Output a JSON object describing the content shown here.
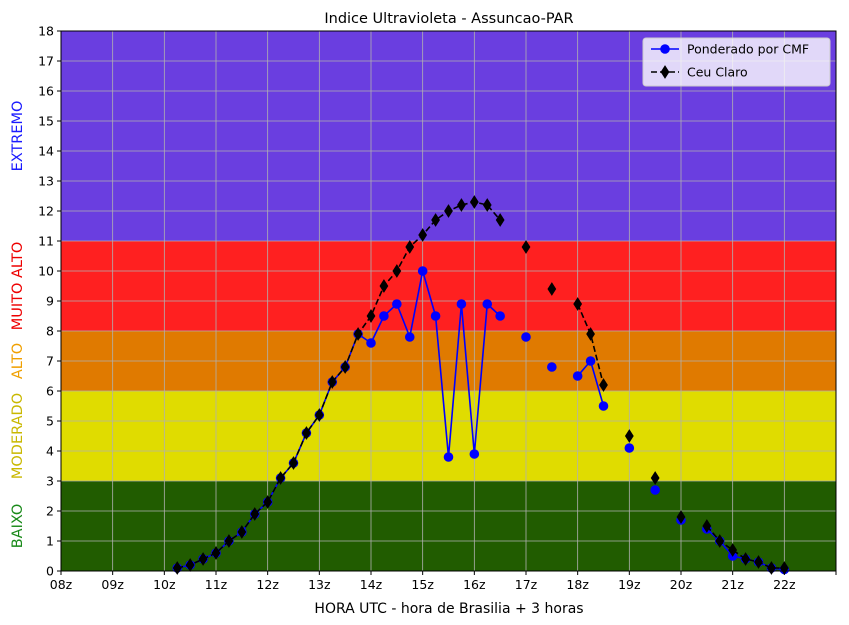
{
  "chart_data": {
    "type": "line",
    "title": "Indice Ultravioleta - Assuncao-PAR",
    "xlabel": "HORA UTC - hora de Brasilia + 3 horas",
    "ylabel": "",
    "xlim": [
      8,
      23
    ],
    "ylim": [
      0,
      18
    ],
    "x_ticks": [
      8,
      9,
      10,
      11,
      12,
      13,
      14,
      15,
      16,
      17,
      18,
      19,
      20,
      21,
      22,
      23
    ],
    "x_tick_labels": [
      "08z",
      "09z",
      "10z",
      "11z",
      "12z",
      "13z",
      "14z",
      "15z",
      "16z",
      "17z",
      "18z",
      "19z",
      "20z",
      "21z",
      "22z",
      ""
    ],
    "y_ticks": [
      0,
      1,
      2,
      3,
      4,
      5,
      6,
      7,
      8,
      9,
      10,
      11,
      12,
      13,
      14,
      15,
      16,
      17,
      18
    ],
    "grid": true,
    "legend_position": "top-right",
    "bands": [
      {
        "label": "BAIXO",
        "from": 0,
        "to": 3,
        "color": "#215c00",
        "label_color": "#1a8a1a"
      },
      {
        "label": "MODERADO",
        "from": 3,
        "to": 6,
        "color": "#e0dc00",
        "label_color": "#c9b800"
      },
      {
        "label": "ALTO",
        "from": 6,
        "to": 8,
        "color": "#e07a00",
        "label_color": "#f0a000"
      },
      {
        "label": "MUITO ALTO",
        "from": 8,
        "to": 11,
        "color": "#ff2020",
        "label_color": "#ee0000"
      },
      {
        "label": "EXTREMO",
        "from": 11,
        "to": 18,
        "color": "#6a3ee0",
        "label_color": "#1a1aff"
      }
    ],
    "series": [
      {
        "name": "Ponderado por CMF",
        "color": "#0000ff",
        "marker": "circle",
        "linestyle": "solid",
        "points": [
          [
            10.25,
            0.1
          ],
          [
            10.5,
            0.2
          ],
          [
            10.75,
            0.4
          ],
          [
            11.0,
            0.6
          ],
          [
            11.25,
            1.0
          ],
          [
            11.5,
            1.3
          ],
          [
            11.75,
            1.9
          ],
          [
            12.0,
            2.3
          ],
          [
            12.25,
            3.1
          ],
          [
            12.5,
            3.6
          ],
          [
            12.75,
            4.6
          ],
          [
            13.0,
            5.2
          ],
          [
            13.25,
            6.3
          ],
          [
            13.5,
            6.8
          ],
          [
            13.75,
            7.9
          ],
          [
            14.0,
            7.6
          ],
          [
            14.25,
            8.5
          ],
          [
            14.5,
            8.9
          ],
          [
            14.75,
            7.8
          ],
          [
            15.0,
            10.0
          ],
          [
            15.25,
            8.5
          ],
          [
            15.5,
            3.8
          ],
          [
            15.75,
            8.9
          ],
          [
            16.0,
            3.9
          ],
          [
            16.25,
            8.9
          ],
          [
            16.5,
            8.5
          ],
          null,
          [
            17.0,
            7.8
          ],
          null,
          [
            17.5,
            6.8
          ],
          null,
          [
            18.0,
            6.5
          ],
          [
            18.25,
            7.0
          ],
          [
            18.5,
            5.5
          ],
          null,
          [
            19.0,
            4.1
          ],
          null,
          [
            19.5,
            2.7
          ],
          null,
          [
            20.0,
            1.7
          ],
          null,
          [
            20.5,
            1.4
          ],
          [
            20.75,
            1.0
          ],
          [
            21.0,
            0.5
          ],
          [
            21.25,
            0.4
          ],
          [
            21.5,
            0.3
          ],
          [
            21.75,
            0.1
          ],
          [
            22.0,
            0.05
          ]
        ]
      },
      {
        "name": "Ceu Claro",
        "color": "#000000",
        "marker": "diamond",
        "linestyle": "dashed",
        "points": [
          [
            10.25,
            0.1
          ],
          [
            10.5,
            0.2
          ],
          [
            10.75,
            0.4
          ],
          [
            11.0,
            0.6
          ],
          [
            11.25,
            1.0
          ],
          [
            11.5,
            1.3
          ],
          [
            11.75,
            1.9
          ],
          [
            12.0,
            2.3
          ],
          [
            12.25,
            3.1
          ],
          [
            12.5,
            3.6
          ],
          [
            12.75,
            4.6
          ],
          [
            13.0,
            5.2
          ],
          [
            13.25,
            6.3
          ],
          [
            13.5,
            6.8
          ],
          [
            13.75,
            7.9
          ],
          [
            14.0,
            8.5
          ],
          [
            14.25,
            9.5
          ],
          [
            14.5,
            10.0
          ],
          [
            14.75,
            10.8
          ],
          [
            15.0,
            11.2
          ],
          [
            15.25,
            11.7
          ],
          [
            15.5,
            12.0
          ],
          [
            15.75,
            12.2
          ],
          [
            16.0,
            12.3
          ],
          [
            16.25,
            12.2
          ],
          [
            16.5,
            11.7
          ],
          null,
          [
            17.0,
            10.8
          ],
          null,
          [
            17.5,
            9.4
          ],
          null,
          [
            18.0,
            8.9
          ],
          [
            18.25,
            7.9
          ],
          [
            18.5,
            6.2
          ],
          null,
          [
            19.0,
            4.5
          ],
          null,
          [
            19.5,
            3.1
          ],
          null,
          [
            20.0,
            1.8
          ],
          null,
          [
            20.5,
            1.5
          ],
          [
            20.75,
            1.0
          ],
          [
            21.0,
            0.7
          ],
          [
            21.25,
            0.4
          ],
          [
            21.5,
            0.3
          ],
          [
            21.75,
            0.1
          ],
          [
            22.0,
            0.1
          ]
        ]
      }
    ]
  }
}
